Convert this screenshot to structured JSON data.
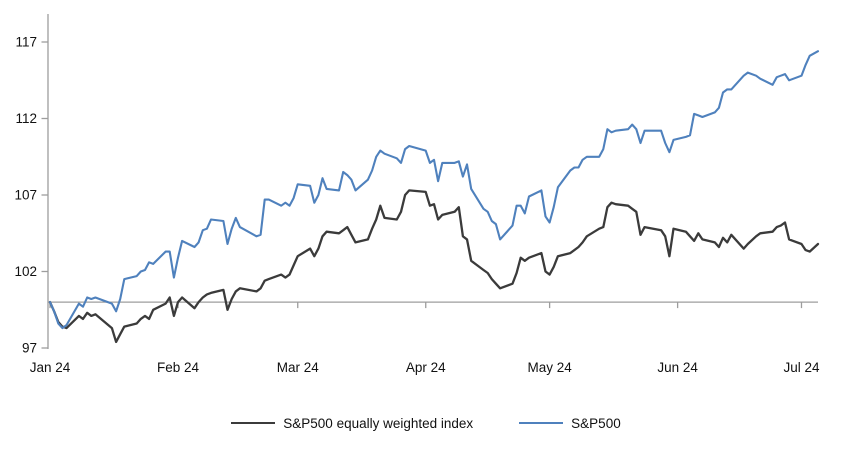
{
  "chart_data": {
    "type": "line",
    "title": "",
    "xlabel": "",
    "ylabel": "",
    "ylim": [
      97,
      117
    ],
    "y_ticks": [
      117,
      112,
      107,
      102,
      97
    ],
    "x_ticks": [
      {
        "label": "Jan 24",
        "day": 0
      },
      {
        "label": "Feb 24",
        "day": 31
      },
      {
        "label": "Mar 24",
        "day": 60
      },
      {
        "label": "Apr 24",
        "day": 91
      },
      {
        "label": "May 24",
        "day": 121
      },
      {
        "label": "Jun 24",
        "day": 152
      },
      {
        "label": "Jul 24",
        "day": 182
      }
    ],
    "xlim_days": [
      0,
      186
    ],
    "baseline_value": 100,
    "grid": "none",
    "legend_position": "bottom",
    "axis_color": "#9d9d9d",
    "baseline_color": "#9d9d9d",
    "days": [
      0,
      1,
      2,
      3,
      4,
      7,
      8,
      9,
      10,
      11,
      15,
      16,
      17,
      18,
      21,
      22,
      23,
      24,
      25,
      28,
      29,
      30,
      31,
      32,
      35,
      36,
      37,
      38,
      39,
      42,
      43,
      44,
      45,
      46,
      50,
      51,
      52,
      53,
      56,
      57,
      58,
      59,
      60,
      63,
      64,
      65,
      66,
      67,
      70,
      71,
      72,
      73,
      74,
      77,
      78,
      79,
      80,
      81,
      84,
      85,
      86,
      87,
      91,
      92,
      93,
      94,
      95,
      98,
      99,
      100,
      101,
      102,
      105,
      106,
      107,
      108,
      109,
      112,
      113,
      114,
      115,
      116,
      119,
      120,
      121,
      122,
      123,
      126,
      127,
      128,
      129,
      130,
      133,
      134,
      135,
      136,
      137,
      140,
      141,
      142,
      143,
      144,
      148,
      149,
      150,
      151,
      154,
      155,
      156,
      157,
      158,
      161,
      162,
      163,
      164,
      165,
      168,
      169,
      171,
      172,
      175,
      176,
      177,
      178,
      179,
      182,
      183,
      184,
      186
    ],
    "series": [
      {
        "name": "S&P500 equally weighted index",
        "color": "#3b3b3b",
        "stroke_width": 2.3,
        "values": [
          100,
          99.4,
          98.7,
          98.4,
          98.3,
          99.1,
          98.9,
          99.3,
          99.1,
          99.2,
          98.3,
          97.4,
          97.9,
          98.4,
          98.6,
          98.9,
          99.1,
          98.9,
          99.5,
          99.9,
          100.3,
          99.1,
          100.0,
          100.3,
          99.6,
          100.0,
          100.3,
          100.5,
          100.6,
          100.8,
          99.5,
          100.2,
          100.7,
          100.9,
          100.7,
          100.9,
          101.4,
          101.5,
          101.8,
          101.6,
          101.8,
          102.4,
          103.0,
          103.5,
          103.0,
          103.5,
          104.3,
          104.6,
          104.5,
          104.7,
          104.9,
          104.4,
          103.9,
          104.1,
          104.8,
          105.4,
          106.3,
          105.5,
          105.4,
          105.9,
          107.0,
          107.3,
          107.2,
          106.3,
          106.4,
          105.4,
          105.7,
          105.9,
          106.2,
          104.3,
          104.1,
          102.7,
          102.1,
          101.9,
          101.5,
          101.2,
          100.9,
          101.2,
          101.9,
          102.9,
          102.7,
          102.9,
          103.2,
          102.0,
          101.8,
          102.3,
          103.0,
          103.2,
          103.4,
          103.6,
          103.9,
          104.3,
          104.8,
          104.9,
          106.2,
          106.5,
          106.4,
          106.3,
          106.1,
          105.9,
          104.4,
          104.9,
          104.7,
          104.3,
          103.0,
          104.8,
          104.6,
          104.3,
          104.0,
          104.5,
          104.1,
          103.9,
          103.6,
          104.2,
          103.9,
          104.4,
          103.5,
          103.8,
          104.3,
          104.5,
          104.6,
          104.9,
          105.0,
          105.2,
          104.1,
          103.8,
          103.4,
          103.3,
          103.8
        ]
      },
      {
        "name": "S&P500",
        "color": "#4f81bd",
        "stroke_width": 2.1,
        "values": [
          100,
          99.4,
          98.6,
          98.3,
          98.5,
          99.9,
          99.7,
          100.3,
          100.2,
          100.3,
          99.9,
          99.4,
          100.2,
          101.5,
          101.7,
          102.0,
          102.1,
          102.6,
          102.5,
          103.3,
          103.3,
          101.6,
          102.9,
          104.0,
          103.6,
          103.9,
          104.7,
          104.8,
          105.4,
          105.3,
          103.8,
          104.8,
          105.5,
          104.9,
          104.3,
          104.4,
          106.7,
          106.7,
          106.3,
          106.5,
          106.3,
          106.8,
          107.7,
          107.6,
          106.5,
          107.0,
          108.1,
          107.4,
          107.3,
          108.5,
          108.3,
          108.0,
          107.3,
          108.0,
          108.6,
          109.5,
          109.9,
          109.7,
          109.4,
          109.1,
          110.0,
          110.2,
          109.9,
          109.1,
          109.3,
          107.9,
          109.1,
          109.1,
          109.2,
          108.2,
          109.0,
          107.4,
          106.1,
          105.9,
          105.3,
          105.1,
          104.1,
          105.0,
          106.3,
          106.3,
          105.8,
          106.9,
          107.3,
          105.6,
          105.2,
          106.2,
          107.5,
          108.6,
          108.8,
          108.8,
          109.3,
          109.5,
          109.5,
          110.0,
          111.3,
          111.1,
          111.2,
          111.3,
          111.6,
          111.3,
          110.4,
          111.2,
          111.2,
          110.4,
          109.8,
          110.6,
          110.8,
          110.9,
          112.3,
          112.2,
          112.1,
          112.4,
          112.7,
          113.7,
          113.9,
          113.9,
          114.8,
          115.0,
          114.8,
          114.6,
          114.2,
          114.7,
          114.8,
          114.9,
          114.5,
          114.8,
          115.5,
          116.1,
          116.4
        ]
      }
    ]
  }
}
